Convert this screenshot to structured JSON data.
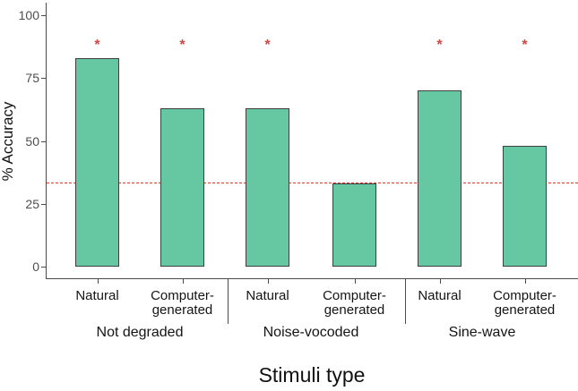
{
  "chart_data": {
    "type": "bar",
    "title": "",
    "xlabel": "Stimuli type",
    "ylabel": "% Accuracy",
    "ylim": [
      0,
      100
    ],
    "yticks": [
      0,
      25,
      50,
      75,
      100
    ],
    "grid": false,
    "legend": false,
    "bar_fill": "#66C8A2",
    "bar_border": "#3f3f3f",
    "categories": [
      "Natural",
      "Computer-generated",
      "Natural",
      "Computer-generated",
      "Natural",
      "Computer-generated"
    ],
    "values": [
      83,
      63,
      63,
      33,
      70,
      48
    ],
    "groups": [
      {
        "label": "Not degraded",
        "bars": [
          {
            "label_lines": [
              "Natural"
            ],
            "value": 83,
            "significant": true
          },
          {
            "label_lines": [
              "Computer-",
              "generated"
            ],
            "value": 63,
            "significant": true
          }
        ]
      },
      {
        "label": "Noise-vocoded",
        "bars": [
          {
            "label_lines": [
              "Natural"
            ],
            "value": 63,
            "significant": true
          },
          {
            "label_lines": [
              "Computer-",
              "generated"
            ],
            "value": 33,
            "significant": false
          }
        ]
      },
      {
        "label": "Sine-wave",
        "bars": [
          {
            "label_lines": [
              "Natural"
            ],
            "value": 70,
            "significant": true
          },
          {
            "label_lines": [
              "Computer-",
              "generated"
            ],
            "value": 48,
            "significant": true
          }
        ]
      }
    ],
    "chance_line": {
      "value": 33.3,
      "style": "dashed",
      "color": "#e5352b"
    },
    "significance_marker": {
      "glyph": "*",
      "y_value": 89,
      "color": "#d9453d"
    }
  }
}
